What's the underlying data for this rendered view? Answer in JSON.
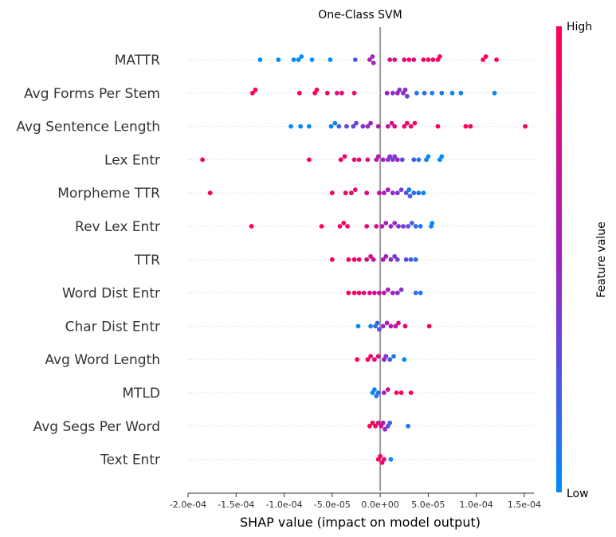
{
  "chart_data": {
    "type": "scatter",
    "subtype": "shap-beeswarm",
    "title": "One-Class SVM",
    "xlabel": "SHAP value (impact on model output)",
    "xlim": [
      -0.0002,
      0.00016
    ],
    "x_ticks": [
      -0.0002,
      -0.00015,
      -0.0001,
      -5e-05,
      0,
      5e-05,
      0.0001,
      0.00015
    ],
    "x_tick_labels": [
      "-2.0e-04",
      "-1.5e-04",
      "-1.0e-04",
      "-5.0e-05",
      "0.0e+00",
      "5.0e-05",
      "1.0e-04",
      "1.5e-04"
    ],
    "colorbar": {
      "label": "Feature value",
      "high": "High",
      "low": "Low",
      "low_color": "#008bfb",
      "high_color": "#ff0052",
      "mid_color": "#a020c0"
    },
    "features": [
      {
        "name": "MATTR",
        "points": [
          [
            -0.000125,
            0
          ],
          [
            -0.000106,
            0
          ],
          [
            -9e-05,
            0
          ],
          [
            -8.5e-05,
            0
          ],
          [
            -8.2e-05,
            0
          ],
          [
            -7.1e-05,
            0
          ],
          [
            -5.2e-05,
            0
          ],
          [
            -2.6e-05,
            0.2
          ],
          [
            -1.1e-05,
            0.6
          ],
          [
            -8e-06,
            0.45
          ],
          [
            -7e-06,
            0.5
          ],
          [
            1e-05,
            0.75
          ],
          [
            1.5e-05,
            0.8
          ],
          [
            2.5e-05,
            0.85
          ],
          [
            3e-05,
            0.9
          ],
          [
            3.5e-05,
            0.8
          ],
          [
            4.5e-05,
            0.9
          ],
          [
            5e-05,
            0.95
          ],
          [
            5.5e-05,
            0.9
          ],
          [
            6e-05,
            1
          ],
          [
            6.2e-05,
            0.95
          ],
          [
            0.000107,
            1
          ],
          [
            0.00011,
            1
          ],
          [
            0.000121,
            1
          ]
        ]
      },
      {
        "name": "Avg Forms Per Stem",
        "points": [
          [
            -0.000133,
            1
          ],
          [
            -0.00013,
            1
          ],
          [
            -8.4e-05,
            1
          ],
          [
            -6.8e-05,
            1
          ],
          [
            -6.6e-05,
            0.95
          ],
          [
            -5.5e-05,
            0.9
          ],
          [
            -4.5e-05,
            0.85
          ],
          [
            -4e-05,
            0.8
          ],
          [
            -2.7e-05,
            0.9
          ],
          [
            7e-06,
            0.5
          ],
          [
            1.3e-05,
            0.4
          ],
          [
            1.8e-05,
            0.5
          ],
          [
            2e-05,
            0.4
          ],
          [
            2.4e-05,
            0.45
          ],
          [
            2.8e-05,
            0.35
          ],
          [
            2.6e-05,
            0.4
          ],
          [
            3.8e-05,
            0.1
          ],
          [
            4.6e-05,
            0.15
          ],
          [
            5.4e-05,
            0.05
          ],
          [
            6.4e-05,
            0.1
          ],
          [
            7.5e-05,
            0.05
          ],
          [
            8.4e-05,
            0.05
          ],
          [
            0.000119,
            0
          ]
        ]
      },
      {
        "name": "Avg Sentence Length",
        "points": [
          [
            -9.3e-05,
            0
          ],
          [
            -8.3e-05,
            0
          ],
          [
            -7.4e-05,
            0
          ],
          [
            -5.1e-05,
            0.05
          ],
          [
            -4.7e-05,
            0.05
          ],
          [
            -4.3e-05,
            0.2
          ],
          [
            -3.5e-05,
            0.3
          ],
          [
            -2.8e-05,
            0.3
          ],
          [
            -2.5e-05,
            0.35
          ],
          [
            -1.8e-05,
            0.4
          ],
          [
            -1.3e-05,
            0.45
          ],
          [
            -1e-05,
            0.5
          ],
          [
            -2e-06,
            0.6
          ],
          [
            8e-06,
            0.7
          ],
          [
            1.2e-05,
            0.7
          ],
          [
            1.5e-05,
            0.8
          ],
          [
            2.5e-05,
            0.85
          ],
          [
            2.8e-05,
            0.9
          ],
          [
            3.2e-05,
            0.9
          ],
          [
            3.6e-05,
            0.9
          ],
          [
            6e-05,
            1
          ],
          [
            8.9e-05,
            1
          ],
          [
            9.4e-05,
            1
          ],
          [
            0.000151,
            1
          ]
        ]
      },
      {
        "name": "Lex Entr",
        "points": [
          [
            -0.000185,
            1
          ],
          [
            -7.4e-05,
            1
          ],
          [
            -4.1e-05,
            0.95
          ],
          [
            -3.7e-05,
            0.9
          ],
          [
            -2.7e-05,
            0.9
          ],
          [
            -2.2e-05,
            0.85
          ],
          [
            -1.3e-05,
            0.8
          ],
          [
            -4e-06,
            0.6
          ],
          [
            -2e-06,
            0.55
          ],
          [
            3e-06,
            0.5
          ],
          [
            8e-06,
            0.45
          ],
          [
            1e-05,
            0.4
          ],
          [
            1.5e-05,
            0.35
          ],
          [
            1.3e-05,
            0.4
          ],
          [
            1.8e-05,
            0.5
          ],
          [
            2.3e-05,
            0.3
          ],
          [
            3.5e-05,
            0.2
          ],
          [
            4e-05,
            0.1
          ],
          [
            4.8e-05,
            0.05
          ],
          [
            5e-05,
            0
          ],
          [
            6.2e-05,
            0
          ],
          [
            6.4e-05,
            0
          ]
        ]
      },
      {
        "name": "Morpheme TTR",
        "points": [
          [
            -0.000177,
            1
          ],
          [
            -5e-05,
            1
          ],
          [
            -3.6e-05,
            0.95
          ],
          [
            -3e-05,
            0.9
          ],
          [
            -2.6e-05,
            0.85
          ],
          [
            -1.4e-05,
            0.8
          ],
          [
            -1e-06,
            0.7
          ],
          [
            4e-06,
            0.55
          ],
          [
            8e-06,
            0.5
          ],
          [
            1.3e-05,
            0.45
          ],
          [
            1.8e-05,
            0.4
          ],
          [
            2.2e-05,
            0.35
          ],
          [
            2.7e-05,
            0.3
          ],
          [
            3.1e-05,
            0.2
          ],
          [
            3.5e-05,
            0.15
          ],
          [
            4e-05,
            0.1
          ],
          [
            4.5e-05,
            0.05
          ],
          [
            3e-05,
            0.05
          ]
        ]
      },
      {
        "name": "Rev Lex Entr",
        "points": [
          [
            -0.000134,
            1
          ],
          [
            -6.1e-05,
            1
          ],
          [
            -4.2e-05,
            0.95
          ],
          [
            -3.8e-05,
            0.9
          ],
          [
            -3.4e-05,
            0.9
          ],
          [
            -1.4e-05,
            0.85
          ],
          [
            -4e-06,
            0.75
          ],
          [
            2e-06,
            0.6
          ],
          [
            6e-06,
            0.55
          ],
          [
            1.1e-05,
            0.5
          ],
          [
            1.5e-05,
            0.45
          ],
          [
            1.9e-05,
            0.4
          ],
          [
            2.4e-05,
            0.35
          ],
          [
            2.9e-05,
            0.3
          ],
          [
            3.3e-05,
            0.2
          ],
          [
            3.7e-05,
            0.15
          ],
          [
            4.2e-05,
            0.1
          ],
          [
            5.3e-05,
            0.05
          ],
          [
            5.4e-05,
            0
          ]
        ]
      },
      {
        "name": "TTR",
        "points": [
          [
            -5e-05,
            1
          ],
          [
            -3.3e-05,
            0.95
          ],
          [
            -2.7e-05,
            0.9
          ],
          [
            -2.2e-05,
            0.85
          ],
          [
            -1.4e-05,
            0.8
          ],
          [
            -1e-05,
            0.75
          ],
          [
            -7e-06,
            0.7
          ],
          [
            3e-06,
            0.55
          ],
          [
            6e-06,
            0.5
          ],
          [
            1.1e-05,
            0.45
          ],
          [
            1.5e-05,
            0.4
          ],
          [
            1.8e-05,
            0.35
          ],
          [
            2.7e-05,
            0.3
          ],
          [
            3.2e-05,
            0.2
          ],
          [
            3.7e-05,
            0.15
          ]
        ]
      },
      {
        "name": "Word Dist Entr",
        "points": [
          [
            -3.3e-05,
            1
          ],
          [
            -2.7e-05,
            0.95
          ],
          [
            -2.2e-05,
            0.9
          ],
          [
            -1.7e-05,
            0.85
          ],
          [
            -1.1e-05,
            0.8
          ],
          [
            -6e-06,
            0.75
          ],
          [
            -1e-06,
            0.7
          ],
          [
            4e-06,
            0.6
          ],
          [
            8e-06,
            0.55
          ],
          [
            1.3e-05,
            0.5
          ],
          [
            1.8e-05,
            0.45
          ],
          [
            2.2e-05,
            0.4
          ],
          [
            3.7e-05,
            0.15
          ],
          [
            4.2e-05,
            0.1
          ]
        ]
      },
      {
        "name": "Char Dist Entr",
        "points": [
          [
            -2.3e-05,
            0
          ],
          [
            -1e-05,
            0.05
          ],
          [
            -5e-06,
            0.15
          ],
          [
            -3e-06,
            0.2
          ],
          [
            -1e-06,
            0.3
          ],
          [
            3e-06,
            0.45
          ],
          [
            7e-06,
            0.55
          ],
          [
            1.1e-05,
            0.6
          ],
          [
            1.6e-05,
            0.7
          ],
          [
            1.9e-05,
            0.8
          ],
          [
            2.6e-05,
            0.9
          ],
          [
            5.1e-05,
            1
          ]
        ]
      },
      {
        "name": "Avg Word Length",
        "points": [
          [
            -2.4e-05,
            1
          ],
          [
            -1.3e-05,
            0.95
          ],
          [
            -1e-05,
            0.9
          ],
          [
            -6e-06,
            0.85
          ],
          [
            -2e-06,
            0.8
          ],
          [
            4e-06,
            0.5
          ],
          [
            6e-06,
            0.4
          ],
          [
            1e-05,
            0.2
          ],
          [
            1.4e-05,
            0.1
          ],
          [
            2.5e-05,
            0
          ]
        ]
      },
      {
        "name": "MTLD",
        "points": [
          [
            -8e-06,
            0
          ],
          [
            -6e-06,
            0.05
          ],
          [
            -4e-06,
            0.1
          ],
          [
            -2e-06,
            0.15
          ],
          [
            4e-06,
            0.5
          ],
          [
            8e-06,
            0.7
          ],
          [
            1.7e-05,
            0.95
          ],
          [
            2.2e-05,
            1
          ],
          [
            3.2e-05,
            1
          ]
        ]
      },
      {
        "name": "Avg Segs Per Word",
        "points": [
          [
            -1.1e-05,
            1
          ],
          [
            -8e-06,
            0.95
          ],
          [
            -5e-06,
            0.9
          ],
          [
            -2e-06,
            0.85
          ],
          [
            1e-06,
            0.75
          ],
          [
            3e-06,
            0.6
          ],
          [
            5e-06,
            0.45
          ],
          [
            8e-06,
            0.3
          ],
          [
            1e-05,
            0.2
          ],
          [
            2.9e-05,
            0.1
          ]
        ]
      },
      {
        "name": "Text Entr",
        "points": [
          [
            -2e-06,
            1
          ],
          [
            0.0,
            0.95
          ],
          [
            2e-06,
            0.9
          ],
          [
            4e-06,
            0.85
          ],
          [
            1.1e-05,
            0
          ]
        ]
      }
    ]
  }
}
